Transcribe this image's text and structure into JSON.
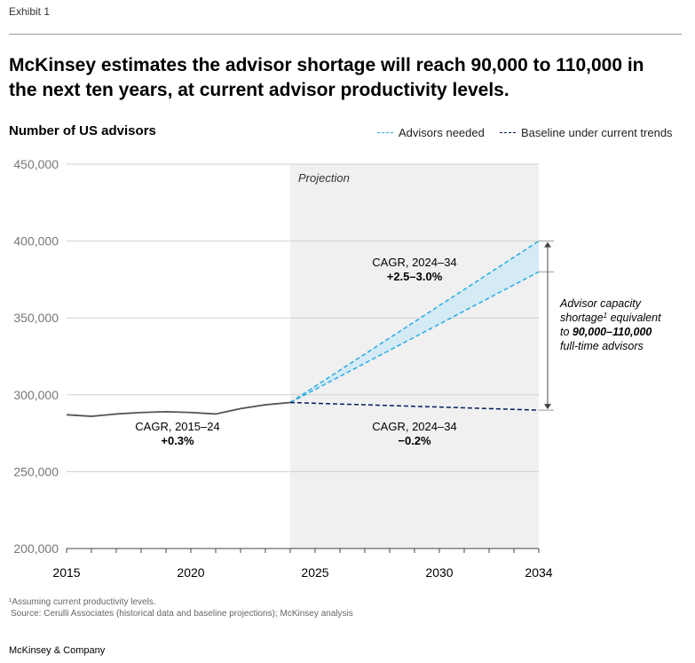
{
  "header": {
    "exhibit": "Exhibit 1",
    "title": "McKinsey estimates the advisor shortage will reach 90,000 to 110,000 in the next ten years, at current advisor productivity levels."
  },
  "footer": {
    "footnote": "¹Assuming current productivity levels.",
    "source": "Source: Cerulli Associates (historical data and baseline projections); McKinsey analysis",
    "brand": "McKinsey & Company"
  },
  "colors": {
    "advisors_needed": "#29abe2",
    "baseline": "#051c5c",
    "history": "#555555",
    "projection_shade": "#f0f0f0",
    "gap_fill": "#d4ebf6",
    "gridline": "#d0d0d0"
  },
  "chart_data": {
    "type": "line",
    "ylabel": "Number of US advisors",
    "xlim": [
      2015,
      2034
    ],
    "ylim": [
      200000,
      450000
    ],
    "x_ticks": [
      "2015",
      "2020",
      "2025",
      "2030",
      "2034"
    ],
    "y_ticks": [
      "450,000",
      "400,000",
      "350,000",
      "300,000",
      "250,000",
      "200,000"
    ],
    "grid": true,
    "legend_position": "top-right",
    "projection_region": {
      "label": "Projection",
      "x_start": 2024,
      "x_end": 2034
    },
    "series": [
      {
        "name": "Advisors needed",
        "style": "dashed",
        "lines": [
          {
            "x": [
              2024,
              2034
            ],
            "y": [
              295000,
              400000
            ]
          },
          {
            "x": [
              2024,
              2034
            ],
            "y": [
              295000,
              380000
            ]
          }
        ]
      },
      {
        "name": "Baseline under current trends",
        "style": "dashed",
        "x": [
          2024,
          2034
        ],
        "y": [
          295000,
          290000
        ]
      },
      {
        "style": "solid",
        "x": [
          2015,
          2016,
          2017,
          2018,
          2019,
          2020,
          2021,
          2022,
          2023,
          2024
        ],
        "y": [
          287000,
          286000,
          287500,
          288500,
          289000,
          288500,
          287500,
          291000,
          293500,
          295000
        ]
      }
    ],
    "annotations": {
      "cagr_needed": {
        "label": "CAGR, 2024–34",
        "value": "+2.5–3.0%"
      },
      "cagr_baseline": {
        "label": "CAGR, 2024–34",
        "value": "−0.2%"
      },
      "cagr_history": {
        "label": "CAGR, 2015–24",
        "value": "+0.3%"
      },
      "shortage": {
        "lines": [
          "Advisor capacity",
          "shortage",
          "equivalent",
          "to",
          "90,000–110,000",
          "full-time advisors"
        ],
        "superscript": "1"
      }
    }
  }
}
